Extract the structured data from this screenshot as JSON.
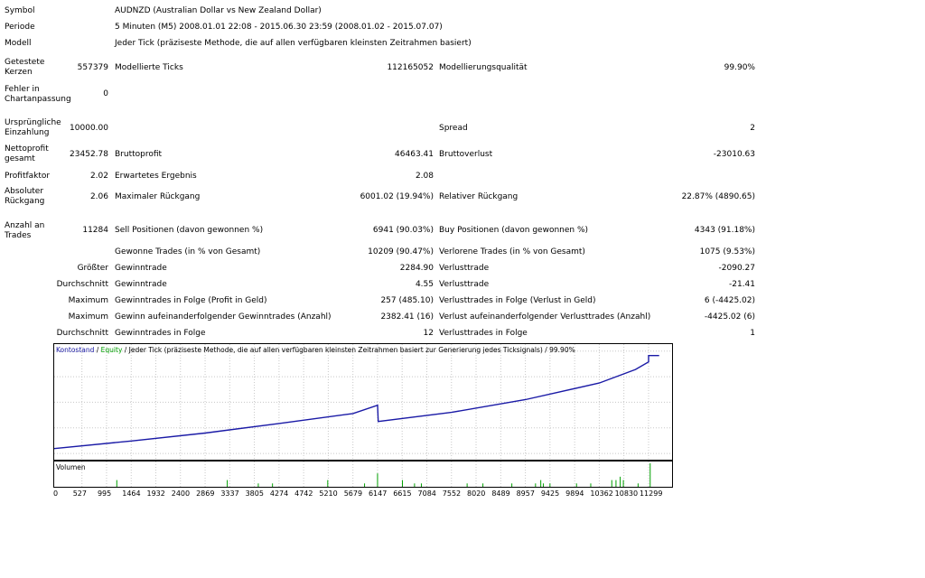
{
  "info": {
    "symbol_label": "Symbol",
    "symbol_value": "AUDNZD (Australian Dollar vs New Zealand Dollar)",
    "period_label": "Periode",
    "period_value": "5 Minuten (M5) 2008.01.01 22:08 - 2015.06.30 23:59 (2008.01.02 - 2015.07.07)",
    "model_label": "Modell",
    "model_value": "Jeder Tick (präziseste Methode, die auf allen verfügbaren kleinsten Zeitrahmen basiert)"
  },
  "stats": {
    "bars_label": "Getestete Kerzen",
    "bars_value": "557379",
    "ticks_label": "Modellierte Ticks",
    "ticks_value": "112165052",
    "quality_label": "Modellierungsqualität",
    "quality_value": "99.90%",
    "errors_label": "Fehler in Chartanpassung",
    "errors_value": "0",
    "deposit_label": "Ursprüngliche Einzahlung",
    "deposit_value": "10000.00",
    "spread_label": "Spread",
    "spread_value": "2",
    "netprofit_label": "Nettoprofit gesamt",
    "netprofit_value": "23452.78",
    "grossprofit_label": "Bruttoprofit",
    "grossprofit_value": "46463.41",
    "grossloss_label": "Bruttoverlust",
    "grossloss_value": "-23010.63",
    "pf_label": "Profitfaktor",
    "pf_value": "2.02",
    "expected_label": "Erwartetes Ergebnis",
    "expected_value": "2.08",
    "absdd_label": "Absoluter Rückgang",
    "absdd_value": "2.06",
    "maxdd_label": "Maximaler Rückgang",
    "maxdd_value": "6001.02 (19.94%)",
    "reldd_label": "Relativer Rückgang",
    "reldd_value": "22.87% (4890.65)",
    "trades_label": "Anzahl an Trades",
    "trades_value": "11284",
    "sell_label": "Sell Positionen (davon gewonnen %)",
    "sell_value": "6941 (90.03%)",
    "buy_label": "Buy Positionen (davon gewonnen %)",
    "buy_value": "4343 (91.18%)",
    "won_label": "Gewonne Trades (in % von Gesamt)",
    "won_value": "10209 (90.47%)",
    "lost_label": "Verlorene Trades (in % von Gesamt)",
    "lost_value": "1075 (9.53%)",
    "largest_prefix": "Größter",
    "largest_win_label": "Gewinntrade",
    "largest_win_value": "2284.90",
    "largest_loss_label": "Verlusttrade",
    "largest_loss_value": "-2090.27",
    "average_prefix": "Durchschnitt",
    "avg_win_label": "Gewinntrade",
    "avg_win_value": "4.55",
    "avg_loss_label": "Verlusttrade",
    "avg_loss_value": "-21.41",
    "maximum_prefix": "Maximum",
    "max_consec_wins_label": "Gewinntrades in Folge (Profit in Geld)",
    "max_consec_wins_value": "257 (485.10)",
    "max_consec_losses_label": "Verlusttrades in Folge (Verlust in Geld)",
    "max_consec_losses_value": "6 (-4425.02)",
    "maximum_prefix2": "Maximum",
    "max_consec_profit_label": "Gewinn aufeinanderfolgender Gewinntrades (Anzahl)",
    "max_consec_profit_value": "2382.41 (16)",
    "max_consec_loss_label": "Verlust aufeinanderfolgender Verlusttrades (Anzahl)",
    "max_consec_loss_value": "-4425.02 (6)",
    "average_prefix2": "Durchschnitt",
    "avg_consec_wins_label": "Gewinntrades in Folge",
    "avg_consec_wins_value": "12",
    "avg_consec_losses_label": "Verlusttrades in Folge",
    "avg_consec_losses_value": "1"
  },
  "graph": {
    "legend_balance": "Kontostand",
    "legend_sep": " / ",
    "legend_equity": "Equity",
    "legend_rest": " / Jeder Tick (präziseste Methode, die auf allen verfügbaren kleinsten Zeitrahmen basiert zur Generierung jedes Ticksignals) / 99.90%",
    "volume_label": "Volumen"
  },
  "colors": {
    "balance": "#1a1aa6",
    "equity": "#00a000",
    "grid": "#c8c8c8",
    "legend_balance": "#1a1aa6",
    "legend_equity": "#00a000"
  },
  "chart_data": {
    "type": "line",
    "y_ticks": [
      34519,
      28081,
      21643,
      15205,
      8767
    ],
    "x_ticks": [
      0,
      527,
      995,
      1464,
      1932,
      2400,
      2869,
      3337,
      3805,
      4274,
      4742,
      5210,
      5679,
      6147,
      6615,
      7084,
      7552,
      8020,
      8489,
      8957,
      9425,
      9894,
      10362,
      10830,
      11299
    ],
    "ylim": [
      7200,
      35600
    ],
    "xlim": [
      0,
      11540
    ],
    "series": [
      {
        "name": "Kontostand",
        "x": [
          0,
          1464,
          2869,
          4274,
          5679,
          6147,
          6160,
          7552,
          8957,
          10362,
          11050,
          11299,
          11300,
          11500
        ],
        "values": [
          10000,
          11900,
          13900,
          16300,
          18800,
          20900,
          16800,
          19100,
          22300,
          26500,
          29900,
          31800,
          33400,
          33400
        ]
      }
    ],
    "volume": {
      "x": [
        1190,
        3290,
        3880,
        4150,
        5200,
        5900,
        6147,
        6620,
        6850,
        6980,
        7850,
        8150,
        8700,
        9150,
        9250,
        9300,
        9425,
        9930,
        10200,
        10600,
        10680,
        10760,
        10820,
        11100,
        11330
      ],
      "values": [
        2,
        2,
        1,
        1,
        2,
        1,
        4,
        2,
        1,
        1,
        1,
        1,
        1,
        1,
        2,
        1,
        1,
        1,
        1,
        2,
        2,
        3,
        2,
        1,
        7
      ]
    }
  }
}
